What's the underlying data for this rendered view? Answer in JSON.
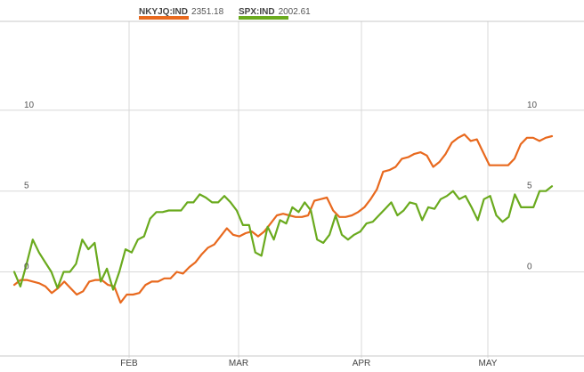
{
  "legend": [
    {
      "name": "NKYJQ:IND",
      "value": "2351.18",
      "color": "#e8691e"
    },
    {
      "name": "SPX:IND",
      "value": "2002.61",
      "color": "#6aaa1e"
    }
  ],
  "chart_data": {
    "type": "line",
    "title": "",
    "xlabel": "",
    "ylabel": "",
    "x_ticks": [
      "FEB",
      "MAR",
      "APR",
      "MAY"
    ],
    "y_ticks": [
      "10",
      "5",
      "0"
    ],
    "ylim": [
      -5.2,
      15.5
    ],
    "grid": true,
    "legend_position": "top-left",
    "series": [
      {
        "name": "NKYJQ:IND",
        "color": "#e8691e",
        "values": [
          -0.8,
          -0.5,
          -0.5,
          -0.6,
          -0.7,
          -0.9,
          -1.3,
          -1.0,
          -0.6,
          -1.0,
          -1.4,
          -1.2,
          -0.6,
          -0.5,
          -0.5,
          -0.8,
          -0.9,
          -1.9,
          -1.4,
          -1.4,
          -1.3,
          -0.8,
          -0.6,
          -0.6,
          -0.4,
          -0.4,
          0.0,
          -0.1,
          0.3,
          0.6,
          1.1,
          1.5,
          1.7,
          2.2,
          2.7,
          2.3,
          2.2,
          2.4,
          2.5,
          2.2,
          2.5,
          3.0,
          3.5,
          3.6,
          3.5,
          3.4,
          3.4,
          3.5,
          4.4,
          4.5,
          4.6,
          3.8,
          3.4,
          3.4,
          3.5,
          3.7,
          4.0,
          4.5,
          5.1,
          6.2,
          6.3,
          6.5,
          7.0,
          7.1,
          7.3,
          7.4,
          7.2,
          6.5,
          6.8,
          7.3,
          8.0,
          8.3,
          8.5,
          8.1,
          8.2,
          7.4,
          6.6,
          6.6,
          6.6,
          6.6,
          7.0,
          7.9,
          8.3,
          8.3,
          8.1,
          8.3,
          8.4
        ]
      },
      {
        "name": "SPX:IND",
        "color": "#6aaa1e",
        "values": [
          0.0,
          -0.9,
          0.5,
          2.0,
          1.2,
          0.6,
          0.0,
          -1.0,
          0.0,
          0.0,
          0.5,
          2.0,
          1.4,
          1.8,
          -0.6,
          0.2,
          -1.1,
          0.0,
          1.4,
          1.2,
          2.0,
          2.2,
          3.3,
          3.7,
          3.7,
          3.8,
          3.8,
          3.8,
          4.3,
          4.3,
          4.8,
          4.6,
          4.3,
          4.3,
          4.7,
          4.3,
          3.8,
          2.9,
          2.9,
          1.2,
          1.0,
          2.8,
          2.0,
          3.2,
          3.0,
          4.0,
          3.7,
          4.3,
          3.8,
          2.0,
          1.8,
          2.3,
          3.5,
          2.3,
          2.0,
          2.3,
          2.5,
          3.0,
          3.1,
          3.5,
          3.9,
          4.3,
          3.5,
          3.8,
          4.3,
          4.2,
          3.2,
          4.0,
          3.9,
          4.5,
          4.7,
          5.0,
          4.5,
          4.7,
          4.0,
          3.2,
          4.5,
          4.7,
          3.5,
          3.1,
          3.4,
          4.8,
          4.0,
          4.0,
          4.0,
          5.0,
          5.0,
          5.3
        ]
      }
    ]
  }
}
